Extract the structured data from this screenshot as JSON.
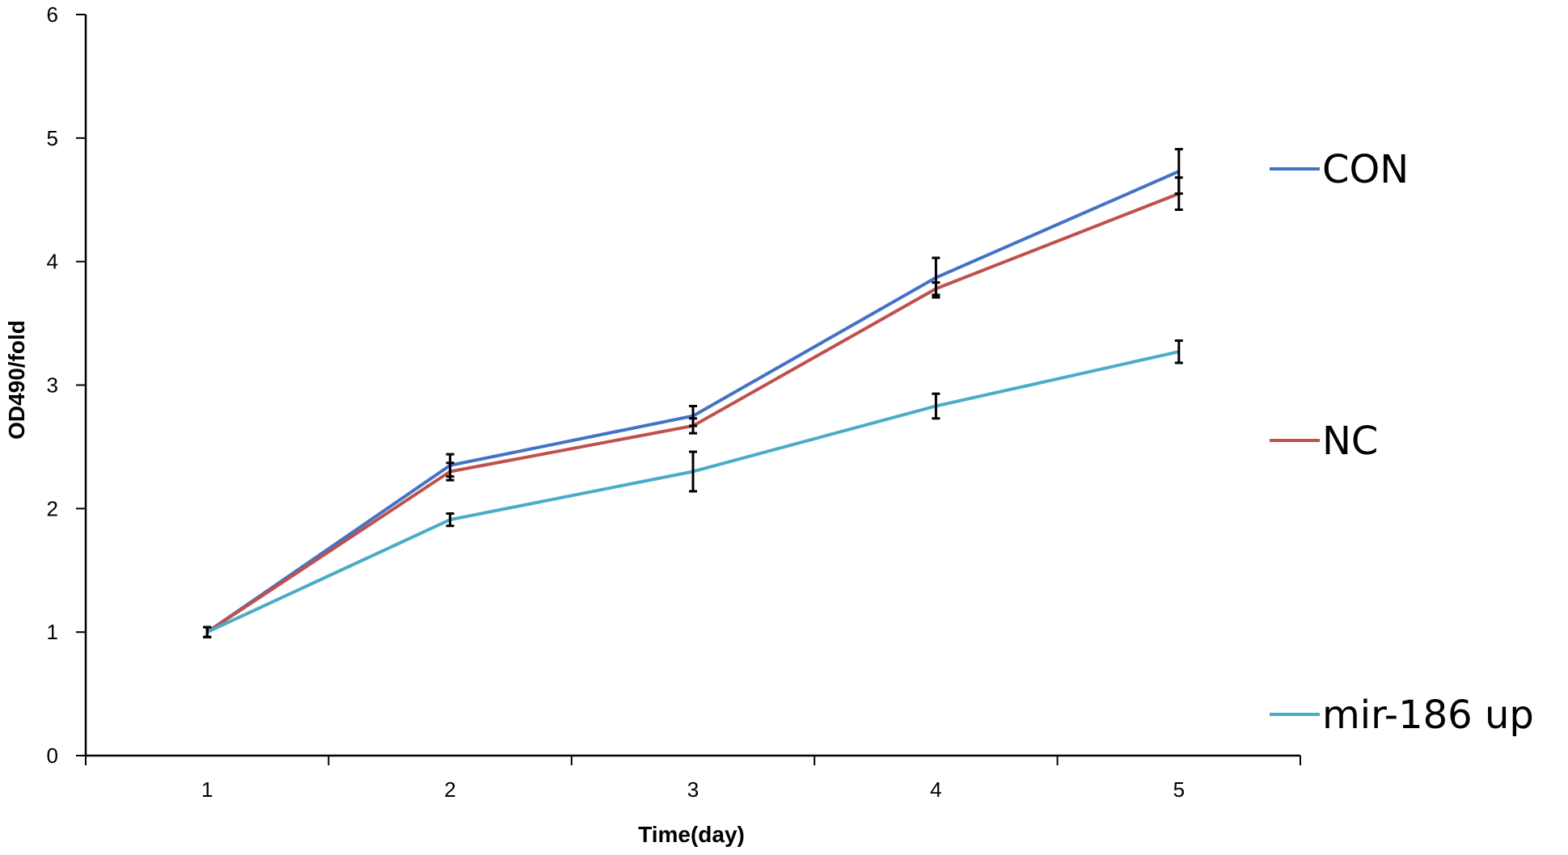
{
  "chart_data": {
    "type": "line",
    "title": "",
    "xlabel": "Time(day)",
    "ylabel": "OD490/fold",
    "x": [
      1,
      2,
      3,
      4,
      5
    ],
    "xlim": [
      0.5,
      5.5
    ],
    "ylim": [
      0,
      6
    ],
    "yticks": [
      0,
      1,
      2,
      3,
      4,
      5,
      6
    ],
    "grid": false,
    "legend_position": "right",
    "series": [
      {
        "name": "CON",
        "color": "#4472c4",
        "values": [
          1.0,
          2.35,
          2.75,
          3.87,
          4.73
        ],
        "errors": [
          0.04,
          0.09,
          0.08,
          0.16,
          0.18
        ]
      },
      {
        "name": "NC",
        "color": "#c0504d",
        "values": [
          1.0,
          2.3,
          2.67,
          3.78,
          4.55
        ],
        "errors": [
          0.04,
          0.07,
          0.06,
          0.05,
          0.13
        ]
      },
      {
        "name": "mir-186 up",
        "color": "#4bacc6",
        "values": [
          1.0,
          1.91,
          2.3,
          2.83,
          3.27
        ],
        "errors": [
          0.04,
          0.05,
          0.16,
          0.1,
          0.09
        ]
      }
    ]
  }
}
